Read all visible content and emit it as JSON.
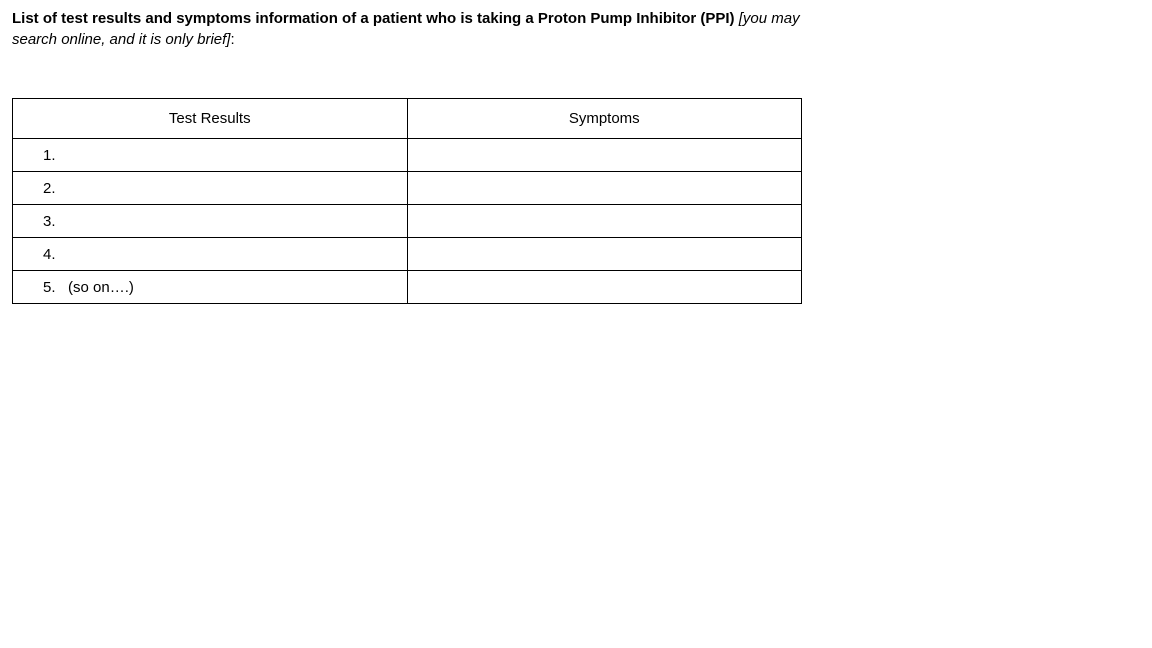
{
  "heading": {
    "bold_prefix": "List of test results and symptoms information of a patient who is taking a Proton Pump Inhibitor (PPI) ",
    "italic_part": "[you may search online, and it is only brief]",
    "suffix": ":"
  },
  "table": {
    "columns": [
      "Test Results",
      "Symptoms"
    ],
    "rows": [
      {
        "left": "1.",
        "right": ""
      },
      {
        "left": "2.",
        "right": ""
      },
      {
        "left": "3.",
        "right": ""
      },
      {
        "left": "4.",
        "right": ""
      },
      {
        "left": "5.   (so on….)",
        "right": ""
      }
    ],
    "border_color": "#000000",
    "background_color": "#ffffff",
    "text_color": "#000000",
    "header_fontsize": 15,
    "cell_fontsize": 15,
    "header_row_height": 40,
    "body_row_height": 33,
    "col_widths_pct": [
      50,
      50
    ]
  }
}
